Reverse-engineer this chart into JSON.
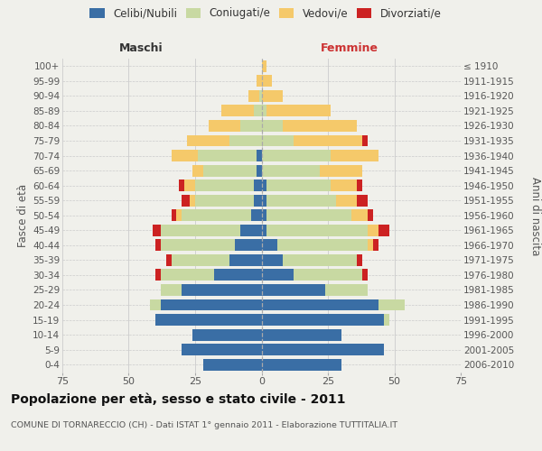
{
  "age_groups": [
    "0-4",
    "5-9",
    "10-14",
    "15-19",
    "20-24",
    "25-29",
    "30-34",
    "35-39",
    "40-44",
    "45-49",
    "50-54",
    "55-59",
    "60-64",
    "65-69",
    "70-74",
    "75-79",
    "80-84",
    "85-89",
    "90-94",
    "95-99",
    "100+"
  ],
  "birth_years": [
    "2006-2010",
    "2001-2005",
    "1996-2000",
    "1991-1995",
    "1986-1990",
    "1981-1985",
    "1976-1980",
    "1971-1975",
    "1966-1970",
    "1961-1965",
    "1956-1960",
    "1951-1955",
    "1946-1950",
    "1941-1945",
    "1936-1940",
    "1931-1935",
    "1926-1930",
    "1921-1925",
    "1916-1920",
    "1911-1915",
    "≤ 1910"
  ],
  "male": {
    "celibi": [
      22,
      30,
      26,
      40,
      38,
      30,
      18,
      12,
      10,
      8,
      4,
      3,
      3,
      2,
      2,
      0,
      0,
      0,
      0,
      0,
      0
    ],
    "coniugati": [
      0,
      0,
      0,
      0,
      4,
      8,
      20,
      22,
      28,
      30,
      26,
      22,
      22,
      20,
      22,
      12,
      8,
      3,
      1,
      0,
      0
    ],
    "vedovi": [
      0,
      0,
      0,
      0,
      0,
      0,
      0,
      0,
      0,
      0,
      2,
      2,
      4,
      4,
      10,
      16,
      12,
      12,
      4,
      2,
      0
    ],
    "divorziati": [
      0,
      0,
      0,
      0,
      0,
      0,
      2,
      2,
      2,
      3,
      2,
      3,
      2,
      0,
      0,
      0,
      0,
      0,
      0,
      0,
      0
    ]
  },
  "female": {
    "nubili": [
      30,
      46,
      30,
      46,
      44,
      24,
      12,
      8,
      6,
      2,
      2,
      2,
      2,
      0,
      0,
      0,
      0,
      0,
      0,
      0,
      0
    ],
    "coniugate": [
      0,
      0,
      0,
      2,
      10,
      16,
      26,
      28,
      34,
      38,
      32,
      26,
      24,
      22,
      26,
      12,
      8,
      2,
      0,
      0,
      0
    ],
    "vedove": [
      0,
      0,
      0,
      0,
      0,
      0,
      0,
      0,
      2,
      4,
      6,
      8,
      10,
      16,
      18,
      26,
      28,
      24,
      8,
      4,
      2
    ],
    "divorziate": [
      0,
      0,
      0,
      0,
      0,
      0,
      2,
      2,
      2,
      4,
      2,
      4,
      2,
      0,
      0,
      2,
      0,
      0,
      0,
      0,
      0
    ]
  },
  "colors": {
    "celibi": "#3a6ea5",
    "coniugati": "#c8d9a2",
    "vedovi": "#f5c96a",
    "divorziati": "#cc2222"
  },
  "xlim": 75,
  "title": "Popolazione per età, sesso e stato civile - 2011",
  "subtitle": "COMUNE DI TORNARECCIO (CH) - Dati ISTAT 1° gennaio 2011 - Elaborazione TUTTITALIA.IT",
  "ylabel_left": "Fasce di età",
  "ylabel_right": "Anni di nascita",
  "xlabel_left": "Maschi",
  "xlabel_right": "Femmine",
  "bg_color": "#f0f0eb",
  "grid_color": "#cccccc"
}
